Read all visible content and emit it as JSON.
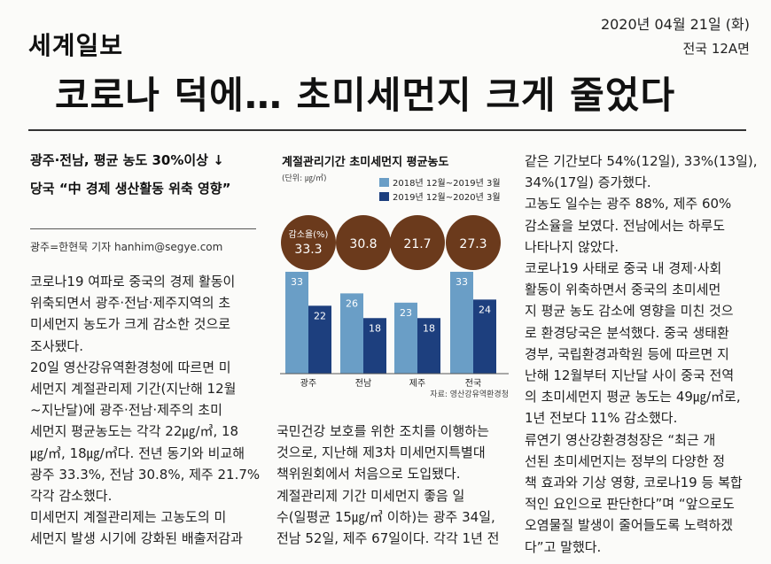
{
  "masthead": "세계일보",
  "date": "2020년 04월 21일 (화)",
  "page": "전국 12A면",
  "headline": "코로나 덕에… 초미세먼지 크게 줄었다",
  "subheads": [
    "광주·전남, 평균 농도 30%이상 ↓",
    "당국 “中 경제 생산활동 위축 영향”"
  ],
  "byline": "광주=한현묵 기자 hanhim@segye.com",
  "col1": [
    "코로나19 여파로 중국의 경제 활동이",
    "위축되면서 광주·전남·제주지역의 초",
    "미세먼지 농도가 크게 감소한 것으로",
    "조사됐다.",
    "  20일 영산강유역환경청에 따르면 미",
    "세먼지 계절관리제 기간(지난해 12월",
    "~지난달)에 광주·전남·제주의 초미",
    "세먼지 평균농도는 각각 22㎍/㎥, 18",
    "㎍/㎥, 18㎍/㎥다. 전년 동기와 비교해",
    "광주 33.3%, 전남 30.8%, 제주 21.7%",
    "각각 감소했다.",
    "  미세먼지 계절관리제는 고농도의 미",
    "세먼지 발생 시기에 강화된 배출저감과"
  ],
  "col2": [
    "국민건강 보호를 위한 조치를 이행하는",
    "것으로, 지난해 제3차 미세먼지특별대",
    "책위원회에서 처음으로 도입됐다.",
    "  계절관리제 기간 미세먼지 좋음 일",
    "수(일평균 15㎍/㎥ 이하)는 광주 34일,",
    "전남 52일, 제주 67일이다. 각각 1년 전"
  ],
  "col3": [
    "같은 기간보다 54%(12일), 33%(13일),",
    "34%(17일) 증가했다.",
    "  고농도 일수는 광주 88%, 제주 60%",
    "감소율을 보였다. 전남에서는 하루도",
    "나타나지 않았다.",
    "  코로나19 사태로 중국 내 경제·사회",
    "활동이 위축하면서 중국의 초미세먼",
    "지 평균 농도 감소에 영향을 미친 것으",
    "로 환경당국은 분석했다. 중국 생태환",
    "경부, 국립환경과학원 등에 따르면 지",
    "난해 12월부터 지난달 사이 중국 전역",
    "의 초미세먼지 평균 농도는 49㎍/㎥로,",
    "1년 전보다 11% 감소했다.",
    "  류연기 영산강환경청장은 “최근 개",
    "선된 초미세먼지는 정부의 다양한 정",
    "책 효과와 기상 영향, 코로나19 등 복합",
    "적인 요인으로 판단한다”며 “앞으로도",
    "오염물질 발생이 줄어들도록 노력하겠",
    "다”고 말했다."
  ],
  "colors": {
    "series_2018": "#6a9ec6",
    "series_2019": "#1d3f7e",
    "bubble": "#6b3a1c"
  },
  "chart_data": {
    "type": "bar",
    "title": "계절관리기간 초미세먼지 평균농도",
    "unit": "(단위: ㎍/㎥)",
    "source": "자료: 영산강유역환경청",
    "categories": [
      "광주",
      "전남",
      "제주",
      "전국"
    ],
    "series": [
      {
        "name": "2018년 12월~2019년 3월",
        "values": [
          33,
          26,
          23,
          33
        ]
      },
      {
        "name": "2019년 12월~2020년 3월",
        "values": [
          22,
          18,
          18,
          24
        ]
      }
    ],
    "reduction_label": "감소율(%)",
    "reduction_rate": [
      33.3,
      30.8,
      21.7,
      27.3
    ],
    "ylim": [
      0,
      35
    ],
    "legend": "top-right"
  }
}
